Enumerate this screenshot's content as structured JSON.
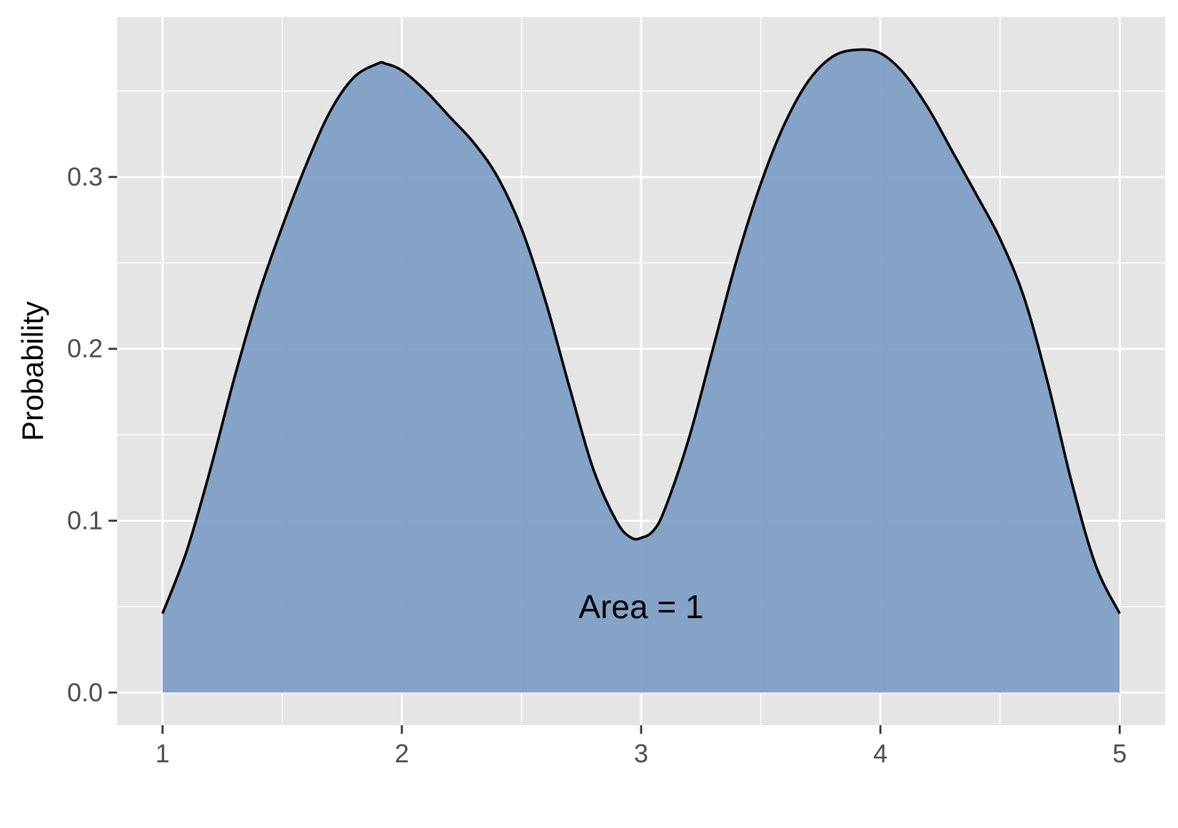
{
  "chart_data": {
    "type": "area",
    "title": "",
    "xlabel": "",
    "ylabel": "Probability",
    "xlim": [
      0.81,
      5.19
    ],
    "ylim": [
      -0.019,
      0.393
    ],
    "x_ticks": [
      1,
      2,
      3,
      4,
      5
    ],
    "x_minor": [
      1.5,
      2.5,
      3.5,
      4.5
    ],
    "y_ticks": [
      0.0,
      0.1,
      0.2,
      0.3
    ],
    "y_tick_labels": [
      "0.0",
      "0.1",
      "0.2",
      "0.3"
    ],
    "y_minor": [
      0.05,
      0.15,
      0.25,
      0.35
    ],
    "grid": true,
    "legend": "none",
    "annotation": {
      "text": "Area = 1",
      "x": 3.0,
      "y": 0.05
    },
    "colors": {
      "panel_background": "#e5e5e5",
      "grid": "#ffffff",
      "fill": "#7f9fc4",
      "line": "#000000",
      "tick_text": "#4d4d4d"
    },
    "series": [
      {
        "x": [
          1.0,
          1.1,
          1.2,
          1.3,
          1.4,
          1.5,
          1.6,
          1.7,
          1.8,
          1.9,
          1.93,
          2.0,
          2.1,
          2.2,
          2.3,
          2.4,
          2.5,
          2.6,
          2.7,
          2.8,
          2.9,
          2.96,
          3.0,
          3.05,
          3.1,
          3.2,
          3.3,
          3.4,
          3.5,
          3.6,
          3.7,
          3.8,
          3.9,
          4.0,
          4.1,
          4.2,
          4.3,
          4.4,
          4.5,
          4.6,
          4.7,
          4.8,
          4.9,
          5.0
        ],
        "y": [
          0.046,
          0.082,
          0.13,
          0.183,
          0.231,
          0.271,
          0.307,
          0.338,
          0.358,
          0.366,
          0.366,
          0.362,
          0.35,
          0.335,
          0.32,
          0.3,
          0.27,
          0.228,
          0.178,
          0.13,
          0.099,
          0.09,
          0.09,
          0.094,
          0.107,
          0.148,
          0.2,
          0.252,
          0.296,
          0.331,
          0.356,
          0.37,
          0.374,
          0.372,
          0.36,
          0.34,
          0.315,
          0.29,
          0.264,
          0.23,
          0.18,
          0.122,
          0.074,
          0.046
        ]
      }
    ]
  }
}
